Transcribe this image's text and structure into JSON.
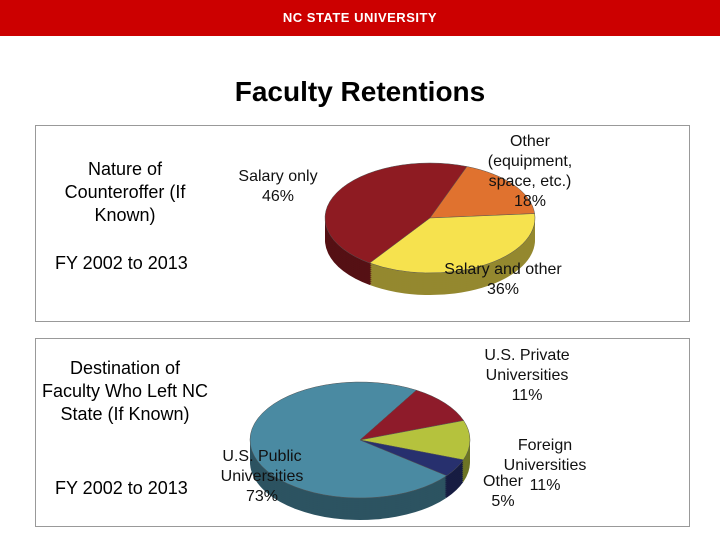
{
  "banner": "NC STATE UNIVERSITY",
  "title": "Faculty Retentions",
  "chart_data": [
    {
      "type": "pie",
      "title": "Nature of Counteroffer (If Known)",
      "subtitle": "FY 2002 to 2013",
      "categories": [
        "Salary only",
        "Other (equipment, space, etc.)",
        "Salary and other"
      ],
      "values": [
        46,
        18,
        36
      ],
      "value_labels": [
        "46%",
        "18%",
        "36%"
      ],
      "colors": [
        "#8e1b22",
        "#e0722f",
        "#f6e24e"
      ]
    },
    {
      "type": "pie",
      "title": "Destination of Faculty Who Left NC State (If Known)",
      "subtitle": "FY 2002 to 2013",
      "categories": [
        "U.S. Public Universities",
        "U.S. Private Universities",
        "Foreign Universities",
        "Other"
      ],
      "values": [
        73,
        11,
        11,
        5
      ],
      "value_labels": [
        "73%",
        "11%",
        "11%",
        "5%"
      ],
      "colors": [
        "#4a8aa2",
        "#8e1b2a",
        "#b5c23d",
        "#27306e"
      ]
    }
  ]
}
